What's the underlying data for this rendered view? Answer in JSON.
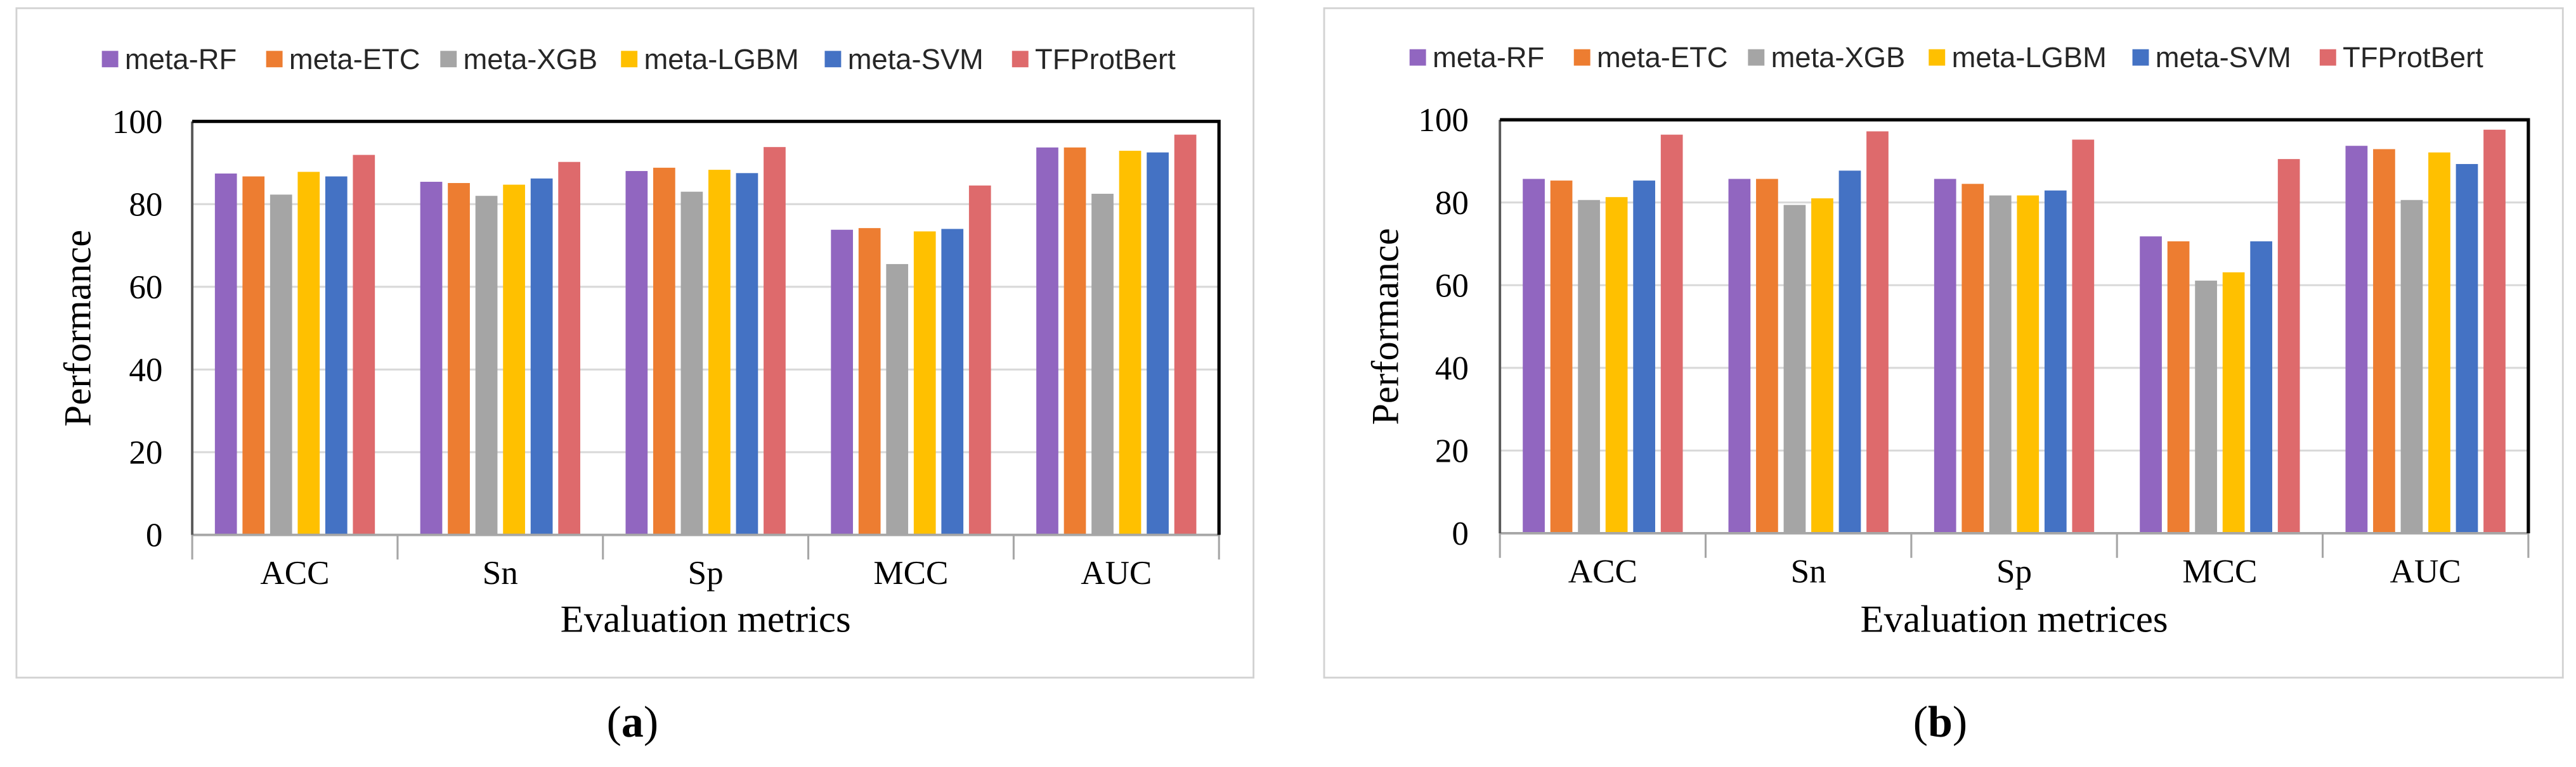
{
  "chart_data": [
    {
      "type": "bar",
      "panel_label": {
        "open": "(",
        "letter": "a",
        "close": ")"
      },
      "categories": [
        "ACC",
        "Sn",
        "Sp",
        "MCC",
        "AUC"
      ],
      "series": [
        {
          "name": "meta-RF",
          "color": "#9166C0",
          "values": [
            87.4,
            85.4,
            88.0,
            73.8,
            93.7
          ]
        },
        {
          "name": "meta-ETC",
          "color": "#ED7D31",
          "values": [
            86.7,
            85.1,
            88.8,
            74.2,
            93.7
          ]
        },
        {
          "name": "meta-XGB",
          "color": "#A5A5A5",
          "values": [
            82.3,
            82.0,
            83.0,
            65.5,
            82.5
          ]
        },
        {
          "name": "meta-LGBM",
          "color": "#FFC000",
          "values": [
            87.8,
            84.7,
            88.3,
            73.4,
            92.9
          ]
        },
        {
          "name": "meta-SVM",
          "color": "#4472C4",
          "values": [
            86.7,
            86.2,
            87.5,
            74.0,
            92.5
          ]
        },
        {
          "name": "TFProtBert",
          "color": "#DE6A6C",
          "values": [
            91.9,
            90.2,
            93.8,
            84.5,
            96.8
          ]
        }
      ],
      "xlabel": "Evaluation metrics",
      "ylabel": "Performance",
      "ylim": [
        0,
        100
      ],
      "yticks": [
        0,
        20,
        40,
        60,
        80,
        100
      ],
      "grid": true,
      "legend": "top"
    },
    {
      "type": "bar",
      "panel_label": {
        "open": "(",
        "letter": "b",
        "close": ")"
      },
      "categories": [
        "ACC",
        "Sn",
        "Sp",
        "MCC",
        "AUC"
      ],
      "series": [
        {
          "name": "meta-RF",
          "color": "#9166C0",
          "values": [
            85.7,
            85.7,
            85.7,
            71.8,
            93.7
          ]
        },
        {
          "name": "meta-ETC",
          "color": "#ED7D31",
          "values": [
            85.3,
            85.7,
            84.5,
            70.6,
            92.9
          ]
        },
        {
          "name": "meta-XGB",
          "color": "#A5A5A5",
          "values": [
            80.6,
            79.4,
            81.7,
            61.1,
            80.6
          ]
        },
        {
          "name": "meta-LGBM",
          "color": "#FFC000",
          "values": [
            81.3,
            81.0,
            81.7,
            63.1,
            92.1
          ]
        },
        {
          "name": "meta-SVM",
          "color": "#4472C4",
          "values": [
            85.3,
            87.7,
            82.9,
            70.6,
            89.3
          ]
        },
        {
          "name": "TFProtBert",
          "color": "#DE6A6C",
          "values": [
            96.4,
            97.2,
            95.2,
            90.5,
            97.6
          ]
        }
      ],
      "xlabel": "Evaluation metrices",
      "ylabel": "Performance",
      "ylim": [
        0,
        100
      ],
      "yticks": [
        0,
        20,
        40,
        60,
        80,
        100
      ],
      "grid": true,
      "legend": "top"
    }
  ]
}
